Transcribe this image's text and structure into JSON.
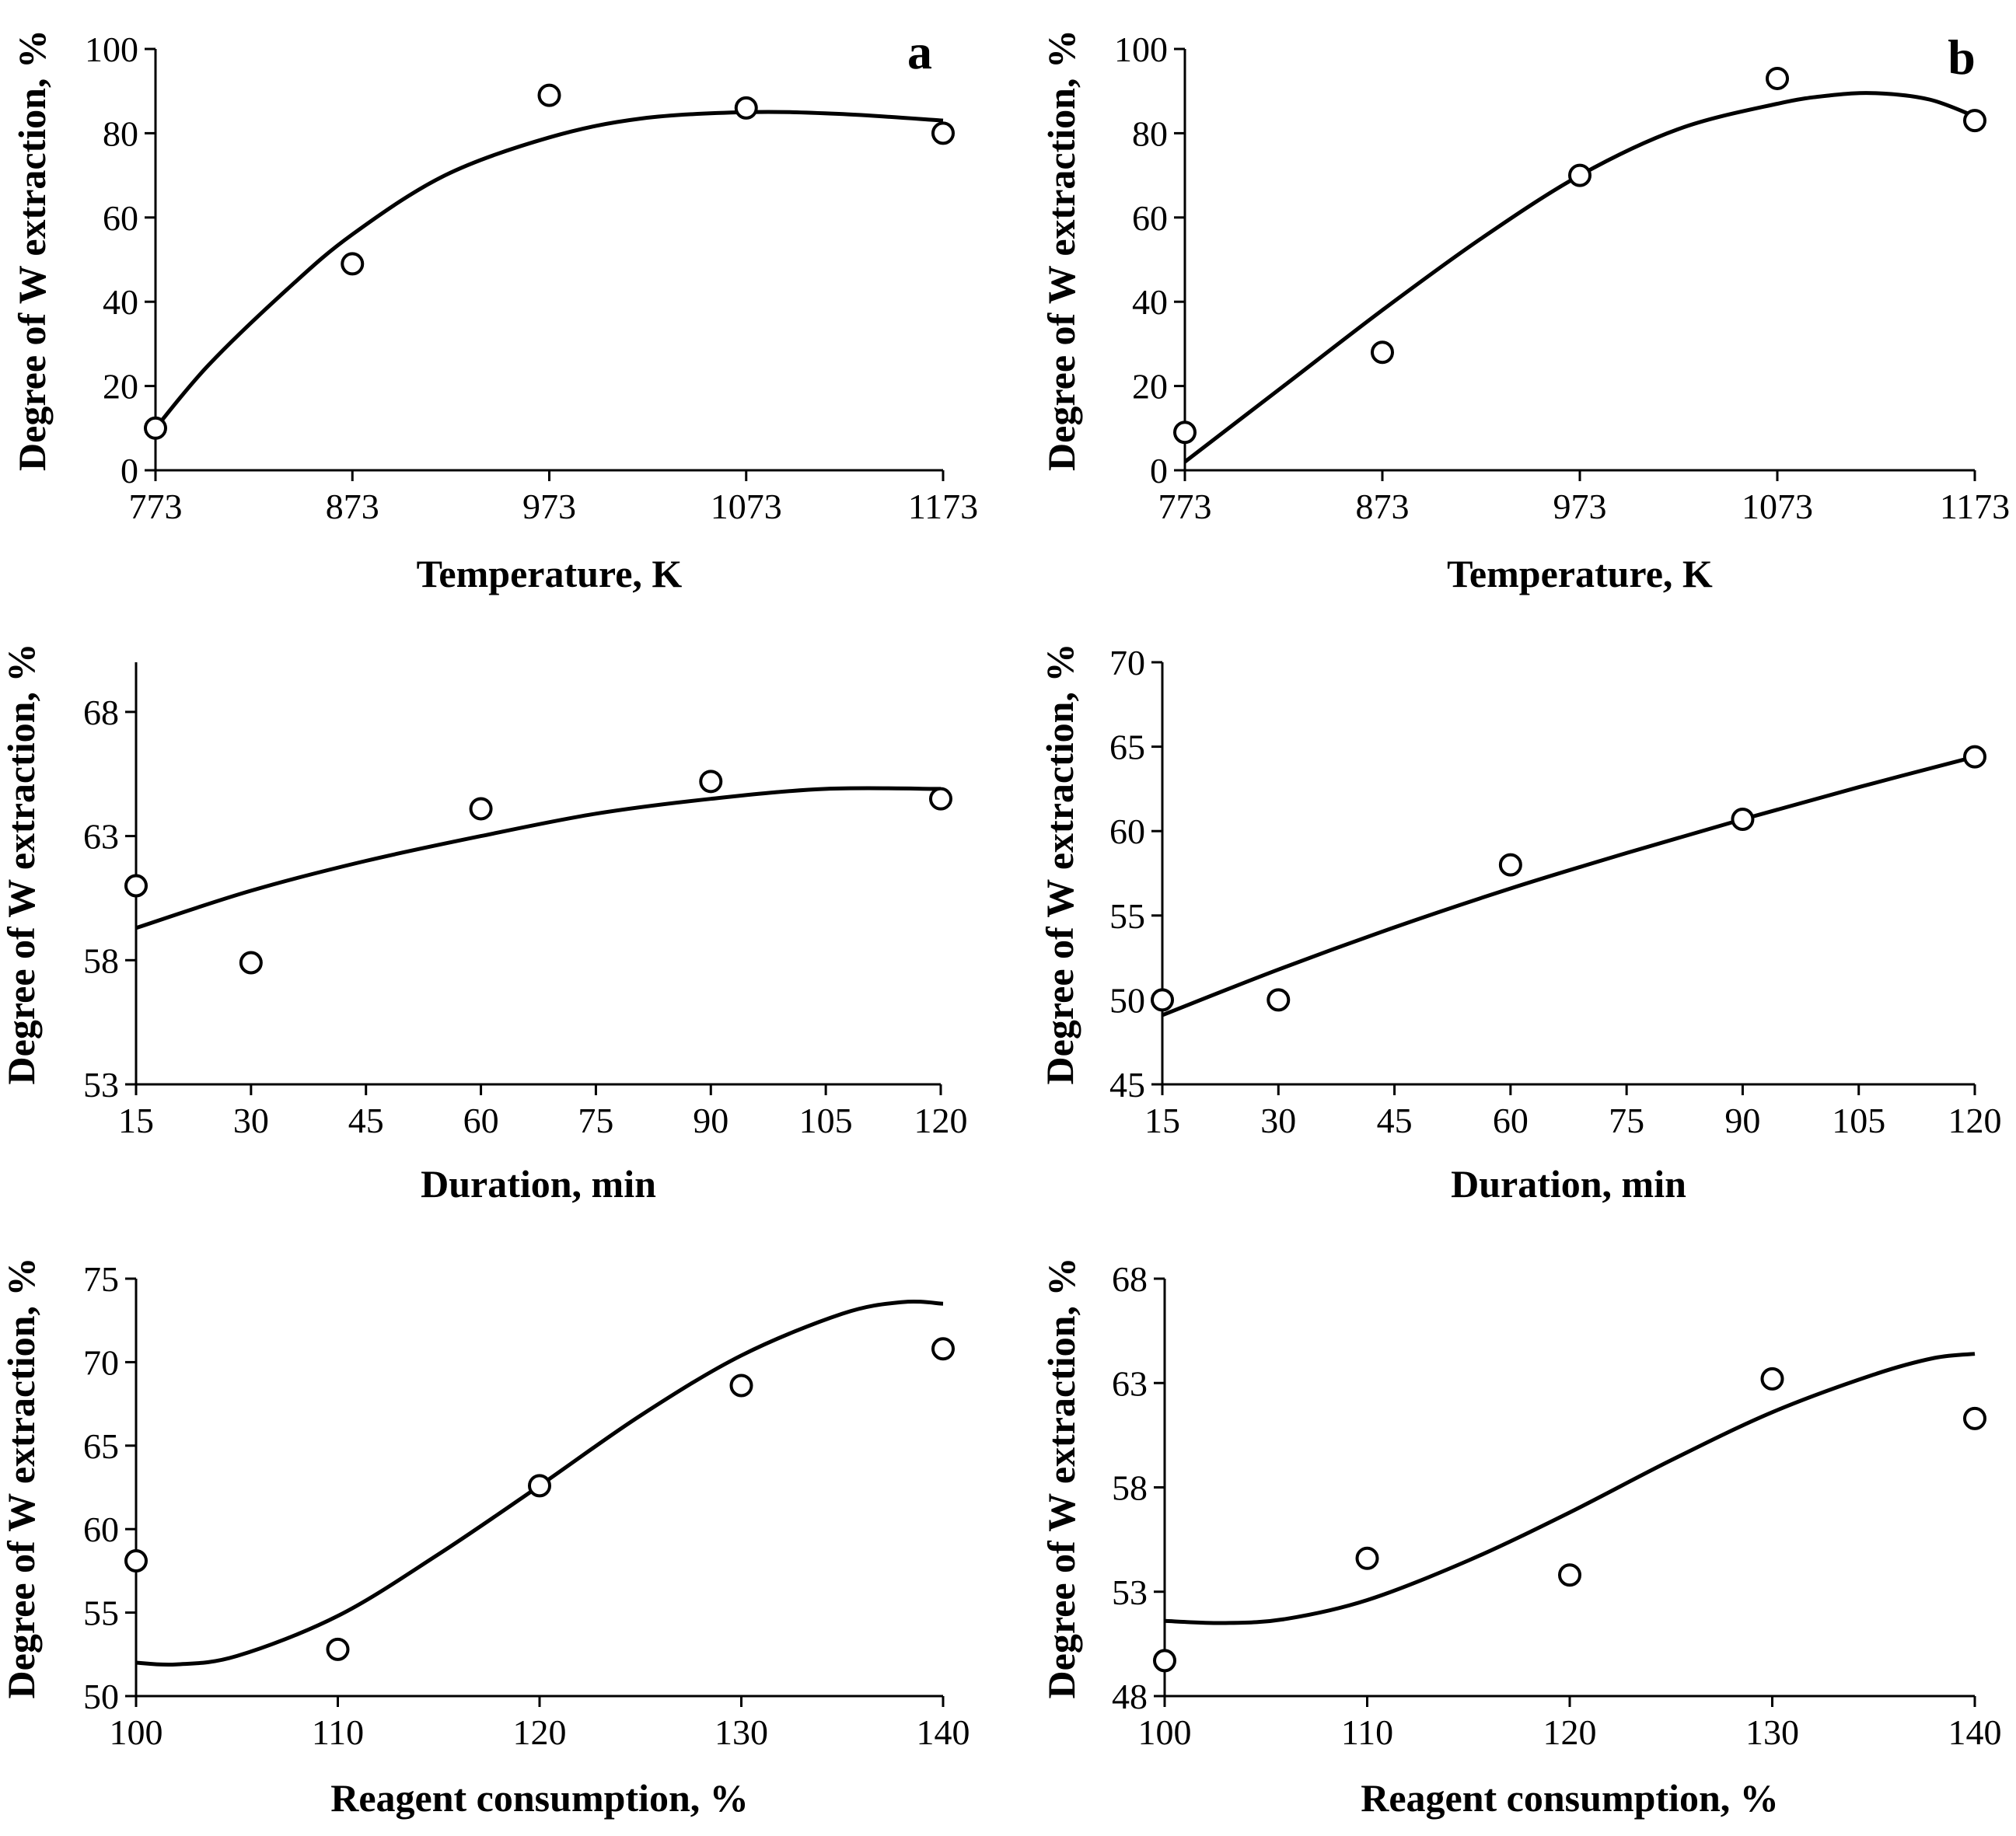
{
  "chart_data": [
    {
      "id": "p1",
      "type": "scatter",
      "panel_label": "a",
      "xlabel": "Temperature, K",
      "ylabel": "Degree of W extraction, %",
      "xlim": [
        773,
        1173
      ],
      "ylim": [
        0,
        100
      ],
      "xticks": [
        773,
        873,
        973,
        1073,
        1173
      ],
      "yticks": [
        0,
        20,
        40,
        60,
        80,
        100
      ],
      "points": [
        {
          "x": 773,
          "y": 10
        },
        {
          "x": 873,
          "y": 49
        },
        {
          "x": 973,
          "y": 89
        },
        {
          "x": 1073,
          "y": 86
        },
        {
          "x": 1173,
          "y": 80
        }
      ],
      "fit": [
        [
          773,
          10
        ],
        [
          800,
          25
        ],
        [
          840,
          43
        ],
        [
          873,
          56
        ],
        [
          920,
          70
        ],
        [
          973,
          79
        ],
        [
          1020,
          83.5
        ],
        [
          1073,
          85
        ],
        [
          1120,
          84.6
        ],
        [
          1173,
          83
        ]
      ]
    },
    {
      "id": "p2",
      "type": "scatter",
      "panel_label": "b",
      "xlabel": "Temperature, K",
      "ylabel": "Degree of W extraction, %",
      "xlim": [
        773,
        1173
      ],
      "ylim": [
        0,
        100
      ],
      "xticks": [
        773,
        873,
        973,
        1073,
        1173
      ],
      "yticks": [
        0,
        20,
        40,
        60,
        80,
        100
      ],
      "points": [
        {
          "x": 773,
          "y": 9
        },
        {
          "x": 873,
          "y": 28
        },
        {
          "x": 973,
          "y": 70
        },
        {
          "x": 1073,
          "y": 93
        },
        {
          "x": 1173,
          "y": 83
        }
      ],
      "fit": [
        [
          773,
          2
        ],
        [
          823,
          20
        ],
        [
          873,
          38
        ],
        [
          923,
          55
        ],
        [
          973,
          70
        ],
        [
          1023,
          81
        ],
        [
          1073,
          87
        ],
        [
          1100,
          89
        ],
        [
          1123,
          89.5
        ],
        [
          1150,
          88
        ],
        [
          1173,
          84
        ]
      ]
    },
    {
      "id": "p3",
      "type": "scatter",
      "panel_label": "",
      "xlabel": "Duration, min",
      "ylabel": "Degree of W extraction, %",
      "xlim": [
        15,
        120
      ],
      "ylim": [
        53,
        70
      ],
      "xticks": [
        15,
        30,
        45,
        60,
        75,
        90,
        105,
        120
      ],
      "yticks": [
        53,
        58,
        63,
        68
      ],
      "points": [
        {
          "x": 15,
          "y": 61
        },
        {
          "x": 30,
          "y": 57.9
        },
        {
          "x": 60,
          "y": 64.1
        },
        {
          "x": 90,
          "y": 65.2
        },
        {
          "x": 120,
          "y": 64.5
        }
      ],
      "fit": [
        [
          15,
          59.3
        ],
        [
          30,
          60.8
        ],
        [
          45,
          62
        ],
        [
          60,
          63
        ],
        [
          75,
          63.9
        ],
        [
          90,
          64.5
        ],
        [
          105,
          64.9
        ],
        [
          120,
          64.9
        ]
      ]
    },
    {
      "id": "p4",
      "type": "scatter",
      "panel_label": "",
      "xlabel": "Duration, min",
      "ylabel": "Degree of W extraction, %",
      "xlim": [
        15,
        120
      ],
      "ylim": [
        45,
        70
      ],
      "xticks": [
        15,
        30,
        45,
        60,
        75,
        90,
        105,
        120
      ],
      "yticks": [
        45,
        50,
        55,
        60,
        65,
        70
      ],
      "points": [
        {
          "x": 15,
          "y": 50
        },
        {
          "x": 30,
          "y": 50
        },
        {
          "x": 60,
          "y": 58
        },
        {
          "x": 90,
          "y": 60.7
        },
        {
          "x": 120,
          "y": 64.4
        }
      ],
      "fit": [
        [
          15,
          49.1
        ],
        [
          30,
          51.8
        ],
        [
          45,
          54.3
        ],
        [
          60,
          56.6
        ],
        [
          75,
          58.7
        ],
        [
          90,
          60.7
        ],
        [
          105,
          62.6
        ],
        [
          120,
          64.4
        ]
      ]
    },
    {
      "id": "p5",
      "type": "scatter",
      "panel_label": "",
      "xlabel": "Reagent consumption, %",
      "ylabel": "Degree of W extraction, %",
      "xlim": [
        100,
        140
      ],
      "ylim": [
        50,
        75
      ],
      "xticks": [
        100,
        110,
        120,
        130,
        140
      ],
      "yticks": [
        50,
        55,
        60,
        65,
        70,
        75
      ],
      "points": [
        {
          "x": 100,
          "y": 58.1
        },
        {
          "x": 110,
          "y": 52.8
        },
        {
          "x": 120,
          "y": 62.6
        },
        {
          "x": 130,
          "y": 68.6
        },
        {
          "x": 140,
          "y": 70.8
        }
      ],
      "fit": [
        [
          100,
          52
        ],
        [
          102,
          51.9
        ],
        [
          105,
          52.4
        ],
        [
          110,
          54.8
        ],
        [
          115,
          58.5
        ],
        [
          120,
          62.6
        ],
        [
          125,
          66.8
        ],
        [
          130,
          70.4
        ],
        [
          135,
          72.9
        ],
        [
          138,
          73.6
        ],
        [
          140,
          73.5
        ]
      ]
    },
    {
      "id": "p6",
      "type": "scatter",
      "panel_label": "",
      "xlabel": "Reagent consumption, %",
      "ylabel": "Degree of W extraction, %",
      "xlim": [
        100,
        140
      ],
      "ylim": [
        48,
        68
      ],
      "xticks": [
        100,
        110,
        120,
        130,
        140
      ],
      "yticks": [
        48,
        53,
        58,
        63,
        68
      ],
      "points": [
        {
          "x": 100,
          "y": 49.7
        },
        {
          "x": 110,
          "y": 54.6
        },
        {
          "x": 120,
          "y": 53.8
        },
        {
          "x": 130,
          "y": 63.2
        },
        {
          "x": 140,
          "y": 61.3
        }
      ],
      "fit": [
        [
          100,
          51.6
        ],
        [
          103,
          51.5
        ],
        [
          106,
          51.7
        ],
        [
          110,
          52.6
        ],
        [
          115,
          54.5
        ],
        [
          120,
          56.8
        ],
        [
          125,
          59.3
        ],
        [
          130,
          61.6
        ],
        [
          135,
          63.4
        ],
        [
          138,
          64.2
        ],
        [
          140,
          64.4
        ]
      ]
    }
  ]
}
